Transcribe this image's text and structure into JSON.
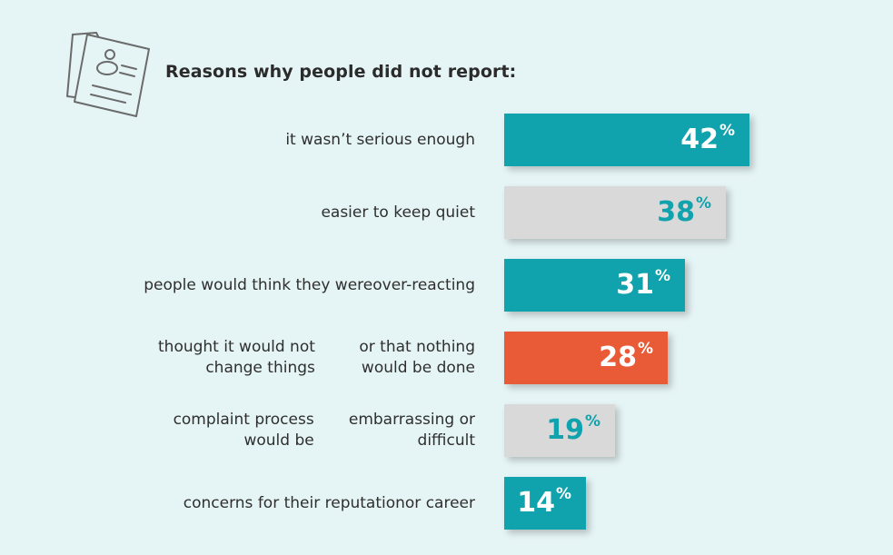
{
  "icon": "document-form-icon",
  "colors": {
    "background": "#e5f4f5",
    "teal": "#10a2ad",
    "gray": "#d9d9d9",
    "orange": "#e85b36",
    "text": "#2b2b2b"
  },
  "chart_data": {
    "type": "bar",
    "orientation": "horizontal",
    "title": "Reasons why people did not report:",
    "unit": "%",
    "xlim": [
      0,
      42
    ],
    "categories": [
      [
        "it wasn’t serious enough"
      ],
      [
        "easier to keep quiet"
      ],
      [
        "people would think they were",
        "over-reacting"
      ],
      [
        "thought it would not change things",
        "or that nothing would be done"
      ],
      [
        "complaint process would be",
        "embarrassing or difficult"
      ],
      [
        "concerns for their reputation",
        "or career"
      ]
    ],
    "values": [
      42,
      38,
      31,
      28,
      19,
      14
    ],
    "bar_colors": [
      "teal",
      "gray",
      "teal",
      "orange",
      "gray",
      "teal"
    ],
    "value_text_colors": [
      "#ffffff",
      "#10a2ad",
      "#ffffff",
      "#ffffff",
      "#10a2ad",
      "#ffffff"
    ]
  }
}
